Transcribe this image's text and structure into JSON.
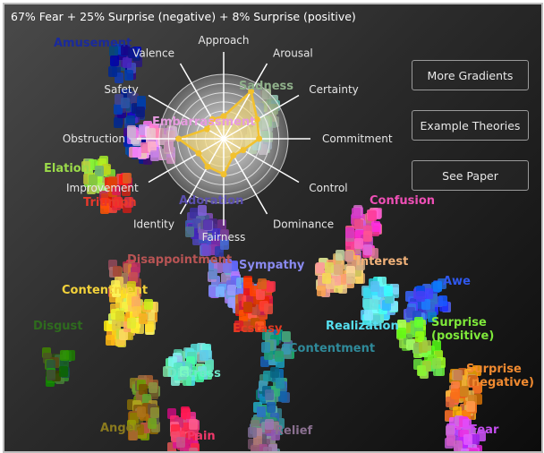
{
  "header": {
    "title": "67% Fear + 25% Surprise (negative) + 8% Surprise (positive)"
  },
  "buttons": {
    "more_gradients": "More Gradients",
    "example_theories": "Example Theories",
    "see_paper": "See Paper"
  },
  "radar": {
    "axes": [
      "Approach",
      "Arousal",
      "Certainty",
      "Commitment",
      "Control",
      "Dominance",
      "Fairness",
      "Identity",
      "Improvement",
      "Obstruction",
      "Safety",
      "Valence"
    ],
    "values": [
      0.35,
      0.85,
      0.6,
      0.55,
      0.35,
      0.3,
      0.55,
      0.5,
      0.45,
      0.7,
      0.3,
      0.35
    ],
    "fill_color": "#f5d76e",
    "line_color": "#f2c12e"
  },
  "emotions": [
    {
      "label": "Amusement",
      "color": "#1a2a9c"
    },
    {
      "label": "Sadness",
      "color": "#8fb08a"
    },
    {
      "label": "Embarrassment",
      "color": "#e79be0"
    },
    {
      "label": "Elation",
      "color": "#9ad94a"
    },
    {
      "label": "Triumph",
      "color": "#e8392b"
    },
    {
      "label": "Adoration",
      "color": "#5b4fb0"
    },
    {
      "label": "Confusion",
      "color": "#ee4fb5"
    },
    {
      "label": "Interest",
      "color": "#f1b27a"
    },
    {
      "label": "Disappointment",
      "color": "#b85454"
    },
    {
      "label": "Sympathy",
      "color": "#8a8af0"
    },
    {
      "label": "Contentment",
      "color": "#f3d23a"
    },
    {
      "label": "Disgust",
      "color": "#2e6b1e"
    },
    {
      "label": "Ecstasy",
      "color": "#e63a22"
    },
    {
      "label": "Realization",
      "color": "#56e0f0"
    },
    {
      "label": "Contentment",
      "color": "#2f8a9a"
    },
    {
      "label": "Awe",
      "color": "#2f58ee"
    },
    {
      "label": "Surprise (positive)",
      "color": "#7ee83a"
    },
    {
      "label": "Surprise (negative)",
      "color": "#f08a30"
    },
    {
      "label": "Distress",
      "color": "#6ee8c8"
    },
    {
      "label": "Anger",
      "color": "#8a7a1e"
    },
    {
      "label": "Pain",
      "color": "#f0386a"
    },
    {
      "label": "Relief",
      "color": "#8a7090"
    },
    {
      "label": "Fear",
      "color": "#c54ef0"
    }
  ]
}
